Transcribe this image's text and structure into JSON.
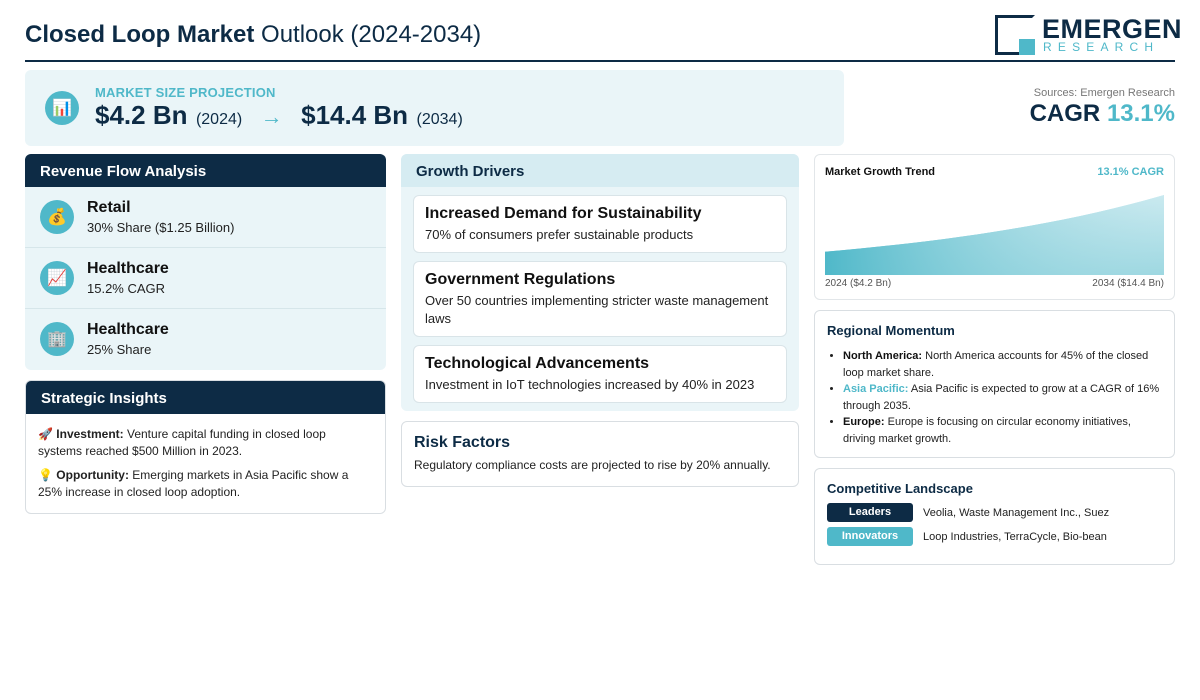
{
  "header": {
    "title_bold": "Closed Loop Market",
    "title_rest": " Outlook (2024-2034)",
    "logo_main": "EMERGEN",
    "logo_sub": "RESEARCH"
  },
  "projection": {
    "icon": "chart-icon",
    "label": "MARKET SIZE PROJECTION",
    "start_value": "$4.2 Bn",
    "start_year": "(2024)",
    "arrow": "→",
    "end_value": "$14.4 Bn",
    "end_year": "(2034)"
  },
  "sources": {
    "text": "Sources: Emergen Research",
    "cagr_label": "CAGR",
    "cagr_value": "13.1%"
  },
  "revenue": {
    "heading": "Revenue Flow Analysis",
    "items": [
      {
        "icon": "money-bag-icon",
        "title": "Retail",
        "sub": "30% Share ($1.25 Billion)"
      },
      {
        "icon": "trend-up-icon",
        "title": "Healthcare",
        "sub": "15.2% CAGR"
      },
      {
        "icon": "building-icon",
        "title": "Healthcare",
        "sub": "25% Share"
      }
    ]
  },
  "insights": {
    "heading": "Strategic Insights",
    "items": [
      {
        "icon": "rocket-icon",
        "label": "Investment:",
        "text": " Venture capital funding in closed loop systems reached $500 Million in 2023."
      },
      {
        "icon": "lightbulb-icon",
        "label": "Opportunity:",
        "text": " Emerging markets in Asia Pacific show a 25% increase in closed loop adoption."
      }
    ]
  },
  "drivers": {
    "heading": "Growth Drivers",
    "items": [
      {
        "title": "Increased Demand for Sustainability",
        "text": "70% of consumers prefer sustainable products"
      },
      {
        "title": "Government Regulations",
        "text": "Over 50 countries implementing stricter waste management laws"
      },
      {
        "title": "Technological Advancements",
        "text": "Investment in IoT technologies increased by 40% in 2023"
      }
    ]
  },
  "risk": {
    "heading": "Risk Factors",
    "text": "Regulatory compliance costs are projected to rise by 20% annually."
  },
  "trend": {
    "title": "Market Growth Trend",
    "cagr": "13.1% CAGR",
    "start_label": "2024 ($4.2 Bn)",
    "end_label": "2034 ($14.4 Bn)"
  },
  "chart_data": {
    "type": "area",
    "x": [
      2024,
      2034
    ],
    "values": [
      4.2,
      14.4
    ],
    "unit": "USD Billion",
    "title": "Market Growth Trend",
    "grid": false
  },
  "regional": {
    "heading": "Regional Momentum",
    "items": [
      {
        "region": "North America:",
        "text": " North America accounts for 45% of the closed loop market share.",
        "color": "#111111"
      },
      {
        "region": "Asia Pacific:",
        "text": " Asia Pacific is expected to grow at a CAGR of 16% through 2035.",
        "color": "#4fb8c9"
      },
      {
        "region": "Europe:",
        "text": " Europe is focusing on circular economy initiatives, driving market growth.",
        "color": "#111111"
      }
    ]
  },
  "competitive": {
    "heading": "Competitive Landscape",
    "rows": [
      {
        "badge": "Leaders",
        "text": "Veolia, Waste Management Inc., Suez",
        "color": "#0d2b45"
      },
      {
        "badge": "Innovators",
        "text": "Loop Industries, TerraCycle, Bio-bean",
        "color": "#4fb8c9"
      }
    ]
  },
  "colors": {
    "navy": "#0d2b45",
    "teal": "#4fb8c9",
    "light_panel": "#eaf5f8"
  }
}
